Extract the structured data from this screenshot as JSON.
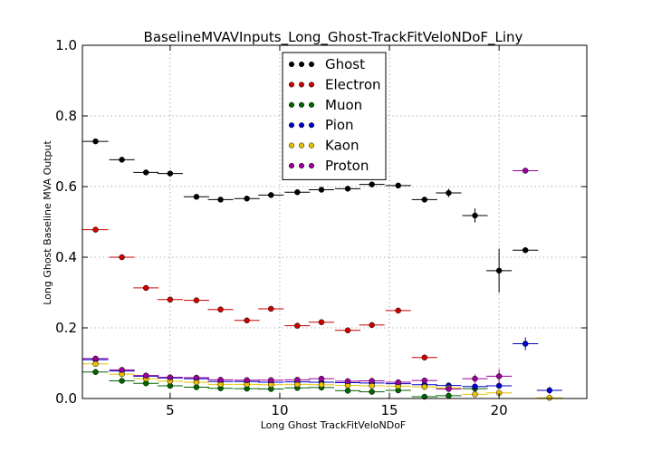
{
  "chart_data": {
    "type": "scatter",
    "title": "BaselineMVAVInputs_Long_Ghost-TrackFitVeloNDoF_Liny",
    "xlabel": "Long Ghost TrackFitVeloNDoF",
    "ylabel": "Long Ghost Baseline MVA Output",
    "xlim": [
      1,
      24
    ],
    "ylim": [
      0.0,
      1.0
    ],
    "x_ticks": [
      5,
      10,
      15,
      20
    ],
    "x_tick_labels": [
      "5",
      "10",
      "15",
      "20"
    ],
    "y_ticks": [
      0.0,
      0.2,
      0.4,
      0.6,
      0.8,
      1.0
    ],
    "y_tick_labels": [
      "0.0",
      "0.2",
      "0.4",
      "0.6",
      "0.8",
      "1.0"
    ],
    "grid": true,
    "legend_position": "top-center",
    "bin_half_width": 0.58,
    "series": [
      {
        "name": "Ghost",
        "color": "#000000",
        "points": [
          {
            "x": 1.6,
            "y": 0.728,
            "err": 0.004
          },
          {
            "x": 2.8,
            "y": 0.676,
            "err": 0.004
          },
          {
            "x": 3.9,
            "y": 0.64,
            "err": 0.004
          },
          {
            "x": 5.0,
            "y": 0.637,
            "err": 0.004
          },
          {
            "x": 6.2,
            "y": 0.571,
            "err": 0.004
          },
          {
            "x": 7.3,
            "y": 0.563,
            "err": 0.004
          },
          {
            "x": 8.5,
            "y": 0.566,
            "err": 0.004
          },
          {
            "x": 9.6,
            "y": 0.576,
            "err": 0.004
          },
          {
            "x": 10.8,
            "y": 0.584,
            "err": 0.004
          },
          {
            "x": 11.9,
            "y": 0.591,
            "err": 0.004
          },
          {
            "x": 13.1,
            "y": 0.594,
            "err": 0.004
          },
          {
            "x": 14.2,
            "y": 0.606,
            "err": 0.004
          },
          {
            "x": 15.4,
            "y": 0.603,
            "err": 0.004
          },
          {
            "x": 16.6,
            "y": 0.563,
            "err": 0.005
          },
          {
            "x": 17.7,
            "y": 0.582,
            "err": 0.012
          },
          {
            "x": 18.9,
            "y": 0.518,
            "err": 0.02
          },
          {
            "x": 20.0,
            "y": 0.362,
            "err": 0.062
          },
          {
            "x": 21.2,
            "y": 0.42,
            "err": 0.004
          }
        ]
      },
      {
        "name": "Electron",
        "color": "#cc0000",
        "points": [
          {
            "x": 1.6,
            "y": 0.478,
            "err": 0.003
          },
          {
            "x": 2.8,
            "y": 0.4,
            "err": 0.003
          },
          {
            "x": 3.9,
            "y": 0.313,
            "err": 0.003
          },
          {
            "x": 5.0,
            "y": 0.28,
            "err": 0.003
          },
          {
            "x": 6.2,
            "y": 0.278,
            "err": 0.003
          },
          {
            "x": 7.3,
            "y": 0.252,
            "err": 0.003
          },
          {
            "x": 8.5,
            "y": 0.221,
            "err": 0.003
          },
          {
            "x": 9.6,
            "y": 0.254,
            "err": 0.003
          },
          {
            "x": 10.8,
            "y": 0.206,
            "err": 0.003
          },
          {
            "x": 11.9,
            "y": 0.216,
            "err": 0.003
          },
          {
            "x": 13.1,
            "y": 0.193,
            "err": 0.003
          },
          {
            "x": 14.2,
            "y": 0.208,
            "err": 0.003
          },
          {
            "x": 15.4,
            "y": 0.249,
            "err": 0.003
          },
          {
            "x": 16.6,
            "y": 0.116,
            "err": 0.003
          }
        ]
      },
      {
        "name": "Muon",
        "color": "#006400",
        "points": [
          {
            "x": 1.6,
            "y": 0.075,
            "err": 0.003
          },
          {
            "x": 2.8,
            "y": 0.05,
            "err": 0.003
          },
          {
            "x": 3.9,
            "y": 0.043,
            "err": 0.003
          },
          {
            "x": 5.0,
            "y": 0.036,
            "err": 0.003
          },
          {
            "x": 6.2,
            "y": 0.032,
            "err": 0.003
          },
          {
            "x": 7.3,
            "y": 0.029,
            "err": 0.003
          },
          {
            "x": 8.5,
            "y": 0.028,
            "err": 0.003
          },
          {
            "x": 9.6,
            "y": 0.027,
            "err": 0.003
          },
          {
            "x": 10.8,
            "y": 0.03,
            "err": 0.003
          },
          {
            "x": 11.9,
            "y": 0.031,
            "err": 0.003
          },
          {
            "x": 13.1,
            "y": 0.022,
            "err": 0.003
          },
          {
            "x": 14.2,
            "y": 0.019,
            "err": 0.003
          },
          {
            "x": 15.4,
            "y": 0.023,
            "err": 0.003
          },
          {
            "x": 16.6,
            "y": 0.005,
            "err": 0.002
          },
          {
            "x": 17.7,
            "y": 0.008,
            "err": 0.002
          },
          {
            "x": 18.9,
            "y": 0.028,
            "err": 0.003
          }
        ]
      },
      {
        "name": "Pion",
        "color": "#0000cc",
        "points": [
          {
            "x": 1.6,
            "y": 0.11,
            "err": 0.003
          },
          {
            "x": 2.8,
            "y": 0.078,
            "err": 0.003
          },
          {
            "x": 3.9,
            "y": 0.063,
            "err": 0.003
          },
          {
            "x": 5.0,
            "y": 0.058,
            "err": 0.003
          },
          {
            "x": 6.2,
            "y": 0.056,
            "err": 0.003
          },
          {
            "x": 7.3,
            "y": 0.048,
            "err": 0.003
          },
          {
            "x": 8.5,
            "y": 0.048,
            "err": 0.003
          },
          {
            "x": 9.6,
            "y": 0.046,
            "err": 0.003
          },
          {
            "x": 10.8,
            "y": 0.047,
            "err": 0.003
          },
          {
            "x": 11.9,
            "y": 0.046,
            "err": 0.003
          },
          {
            "x": 13.1,
            "y": 0.045,
            "err": 0.003
          },
          {
            "x": 14.2,
            "y": 0.044,
            "err": 0.003
          },
          {
            "x": 15.4,
            "y": 0.042,
            "err": 0.003
          },
          {
            "x": 16.6,
            "y": 0.039,
            "err": 0.003
          },
          {
            "x": 17.7,
            "y": 0.037,
            "err": 0.003
          },
          {
            "x": 18.9,
            "y": 0.034,
            "err": 0.004
          },
          {
            "x": 20.0,
            "y": 0.036,
            "err": 0.006
          },
          {
            "x": 21.2,
            "y": 0.155,
            "err": 0.018
          },
          {
            "x": 22.3,
            "y": 0.023,
            "err": 0.01
          }
        ]
      },
      {
        "name": "Kaon",
        "color": "#e6c200",
        "points": [
          {
            "x": 1.6,
            "y": 0.098,
            "err": 0.003
          },
          {
            "x": 2.8,
            "y": 0.069,
            "err": 0.003
          },
          {
            "x": 3.9,
            "y": 0.056,
            "err": 0.003
          },
          {
            "x": 5.0,
            "y": 0.049,
            "err": 0.003
          },
          {
            "x": 6.2,
            "y": 0.046,
            "err": 0.003
          },
          {
            "x": 7.3,
            "y": 0.04,
            "err": 0.003
          },
          {
            "x": 8.5,
            "y": 0.04,
            "err": 0.003
          },
          {
            "x": 9.6,
            "y": 0.039,
            "err": 0.003
          },
          {
            "x": 10.8,
            "y": 0.04,
            "err": 0.003
          },
          {
            "x": 11.9,
            "y": 0.039,
            "err": 0.003
          },
          {
            "x": 13.1,
            "y": 0.037,
            "err": 0.003
          },
          {
            "x": 14.2,
            "y": 0.036,
            "err": 0.003
          },
          {
            "x": 15.4,
            "y": 0.035,
            "err": 0.003
          },
          {
            "x": 16.6,
            "y": 0.033,
            "err": 0.003
          },
          {
            "x": 17.7,
            "y": 0.03,
            "err": 0.003
          },
          {
            "x": 18.9,
            "y": 0.012,
            "err": 0.003
          },
          {
            "x": 20.0,
            "y": 0.016,
            "err": 0.004
          },
          {
            "x": 22.3,
            "y": 0.002,
            "err": 0.002
          }
        ]
      },
      {
        "name": "Proton",
        "color": "#990099",
        "points": [
          {
            "x": 1.6,
            "y": 0.113,
            "err": 0.003
          },
          {
            "x": 2.8,
            "y": 0.081,
            "err": 0.003
          },
          {
            "x": 3.9,
            "y": 0.065,
            "err": 0.003
          },
          {
            "x": 5.0,
            "y": 0.06,
            "err": 0.003
          },
          {
            "x": 6.2,
            "y": 0.059,
            "err": 0.003
          },
          {
            "x": 7.3,
            "y": 0.053,
            "err": 0.003
          },
          {
            "x": 8.5,
            "y": 0.052,
            "err": 0.003
          },
          {
            "x": 9.6,
            "y": 0.052,
            "err": 0.003
          },
          {
            "x": 10.8,
            "y": 0.053,
            "err": 0.003
          },
          {
            "x": 11.9,
            "y": 0.056,
            "err": 0.003
          },
          {
            "x": 13.1,
            "y": 0.049,
            "err": 0.003
          },
          {
            "x": 14.2,
            "y": 0.05,
            "err": 0.003
          },
          {
            "x": 15.4,
            "y": 0.046,
            "err": 0.003
          },
          {
            "x": 16.6,
            "y": 0.051,
            "err": 0.003
          },
          {
            "x": 17.7,
            "y": 0.027,
            "err": 0.008
          },
          {
            "x": 18.9,
            "y": 0.056,
            "err": 0.012
          },
          {
            "x": 20.0,
            "y": 0.063,
            "err": 0.02
          },
          {
            "x": 21.2,
            "y": 0.645,
            "err": 0.004
          }
        ]
      }
    ]
  }
}
